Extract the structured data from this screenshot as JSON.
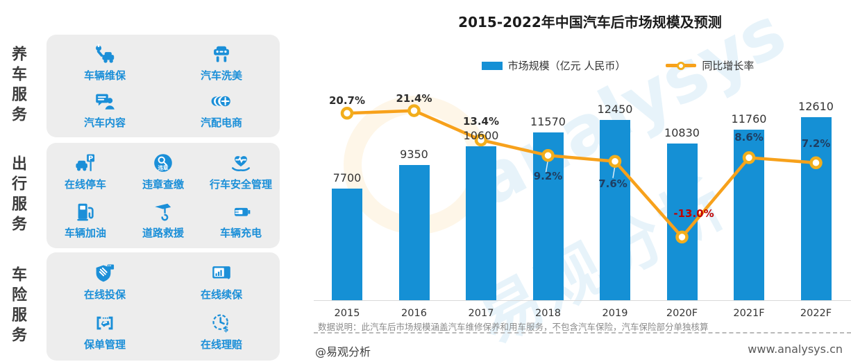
{
  "sidebar": {
    "sections": [
      {
        "category": "养车服务",
        "items": [
          {
            "label": "车辆维保",
            "icon": "wrench-car-icon"
          },
          {
            "label": "汽车洗美",
            "icon": "car-wash-lift-icon"
          },
          {
            "label": "汽车内容",
            "icon": "chat-person-icon"
          },
          {
            "label": "汽配电商",
            "icon": "tires-icon"
          }
        ]
      },
      {
        "category": "出行服务",
        "items": [
          {
            "label": "在线停车",
            "icon": "parking-icon"
          },
          {
            "label": "违章查缴",
            "icon": "violation-search-icon"
          },
          {
            "label": "行车安全管理",
            "icon": "safety-heart-hand-icon"
          },
          {
            "label": "车辆加油",
            "icon": "fuel-pump-icon"
          },
          {
            "label": "道路救援",
            "icon": "tow-hook-icon"
          },
          {
            "label": "车辆充电",
            "icon": "battery-charge-icon"
          }
        ]
      },
      {
        "category": "车险服务",
        "items": [
          {
            "label": "在线投保",
            "icon": "shield-icon"
          },
          {
            "label": "在线续保",
            "icon": "tablet-click-icon"
          },
          {
            "label": "保单管理",
            "icon": "policy-doc-icon"
          },
          {
            "label": "在线理赔",
            "icon": "claim-clock-icon"
          }
        ]
      }
    ]
  },
  "chart_data": {
    "type": "bar",
    "title": "2015-2022年中国汽车后市场规模及预测",
    "categories": [
      "2015",
      "2016",
      "2017",
      "2018",
      "2019",
      "2020F",
      "2021F",
      "2022F"
    ],
    "series": [
      {
        "name": "市场规模（亿元 人民币）",
        "type": "bar",
        "values": [
          7700,
          9350,
          10600,
          11570,
          12450,
          10830,
          11760,
          12610
        ],
        "color": "#1590d5"
      },
      {
        "name": "同比增长率",
        "type": "line",
        "values_pct": [
          20.7,
          21.4,
          13.4,
          9.2,
          7.6,
          -13.0,
          8.6,
          7.2
        ],
        "labels": [
          "20.7%",
          "21.4%",
          "13.4%",
          "9.2%",
          "7.6%",
          "-13.0%",
          "8.6%",
          "7.2%"
        ],
        "color": "#f7a11b",
        "marker_ring_color": "#f2ae1c",
        "label_color": "#2e2e2e",
        "label_color_on_bar": "#1f3e62",
        "negative_label_color": "#c00000"
      }
    ],
    "legend_position": "top",
    "grid": false,
    "ylim": [
      0,
      14000
    ],
    "note": "数据说明：此汽车后市场规模涵盖汽车维修保养和用车服务，不包含汽车保险，汽车保险部分单独核算"
  },
  "footer": {
    "brand": "@易观分析",
    "website": "www.analysys.cn"
  },
  "watermark": {
    "latin": "analysys",
    "cjk": "易观分析"
  },
  "colors": {
    "bar_blue": "#1590d5",
    "icon_blue": "#1b8fd8",
    "line_orange": "#f7a11b",
    "panel_gray": "#ededed",
    "negative_red": "#c00000"
  }
}
